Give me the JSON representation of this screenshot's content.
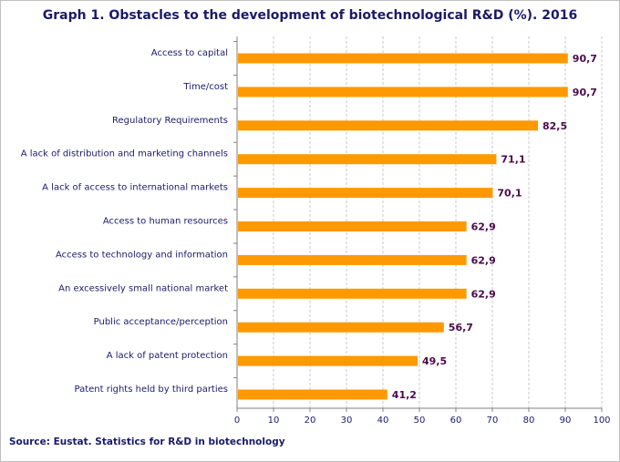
{
  "chart_data": {
    "type": "bar",
    "orientation": "horizontal",
    "title": "Graph 1. Obstacles to the development of biotechnological R&D (%). 2016",
    "source": "Source: Eustat. Statistics for R&D in biotechnology",
    "categories": [
      "Access to capital",
      "Time/cost",
      "Regulatory Requirements",
      "A lack of distribution and marketing channels",
      "A lack of access to international markets",
      "Access to human resources",
      "Access to technology and information",
      "An excessively small national market",
      "Public acceptance/perception",
      "A lack of patent protection",
      "Patent rights held by third parties"
    ],
    "values": [
      90.7,
      90.7,
      82.5,
      71.1,
      70.1,
      62.9,
      62.9,
      62.9,
      56.7,
      49.5,
      41.2
    ],
    "value_labels": [
      "90,7",
      "90,7",
      "82,5",
      "71,1",
      "70,1",
      "62,9",
      "62,9",
      "62,9",
      "56,7",
      "49,5",
      "41,2"
    ],
    "xlim": [
      0,
      100
    ],
    "xticks": [
      "0",
      "10",
      "20",
      "30",
      "40",
      "50",
      "60",
      "70",
      "80",
      "90",
      "100"
    ],
    "xlabel": "",
    "ylabel": "",
    "grid": true,
    "bar_color": "#ff9900",
    "label_color": "#4b0a4b"
  }
}
